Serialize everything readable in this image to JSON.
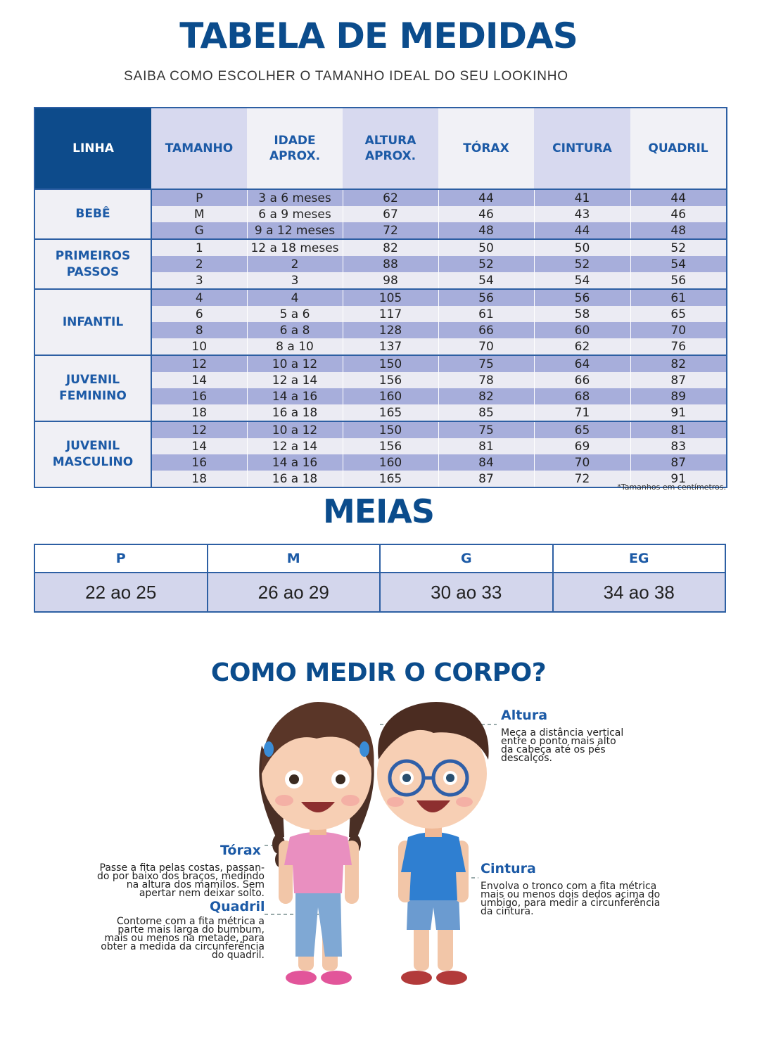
{
  "header": {
    "title": "TABELA DE MEDIDAS",
    "subtitle": "SAIBA COMO ESCOLHER O TAMANHO IDEAL DO SEU LOOKINHO"
  },
  "table": {
    "columns": [
      "LINHA",
      "TAMANHO",
      "IDADE\nAPROX.",
      "ALTURA\nAPROX.",
      "TÓRAX",
      "CINTURA",
      "QUADRIL"
    ],
    "groups": [
      {
        "name": "BEBÊ",
        "rows": [
          [
            "P",
            "3 a 6 meses",
            "62",
            "44",
            "41",
            "44"
          ],
          [
            "M",
            "6 a 9 meses",
            "67",
            "46",
            "43",
            "46"
          ],
          [
            "G",
            "9 a 12 meses",
            "72",
            "48",
            "44",
            "48"
          ]
        ]
      },
      {
        "name": "PRIMEIROS\nPASSOS",
        "rows": [
          [
            "1",
            "12 a 18 meses",
            "82",
            "50",
            "50",
            "52"
          ],
          [
            "2",
            "2",
            "88",
            "52",
            "52",
            "54"
          ],
          [
            "3",
            "3",
            "98",
            "54",
            "54",
            "56"
          ]
        ]
      },
      {
        "name": "INFANTIL",
        "rows": [
          [
            "4",
            "4",
            "105",
            "56",
            "56",
            "61"
          ],
          [
            "6",
            "5 a 6",
            "117",
            "61",
            "58",
            "65"
          ],
          [
            "8",
            "6 a 8",
            "128",
            "66",
            "60",
            "70"
          ],
          [
            "10",
            "8 a 10",
            "137",
            "70",
            "62",
            "76"
          ]
        ]
      },
      {
        "name": "JUVENIL\nFEMININO",
        "rows": [
          [
            "12",
            "10 a 12",
            "150",
            "75",
            "64",
            "82"
          ],
          [
            "14",
            "12 a 14",
            "156",
            "78",
            "66",
            "87"
          ],
          [
            "16",
            "14 a 16",
            "160",
            "82",
            "68",
            "89"
          ],
          [
            "18",
            "16 a 18",
            "165",
            "85",
            "71",
            "91"
          ]
        ]
      },
      {
        "name": "JUVENIL\nMASCULINO",
        "rows": [
          [
            "12",
            "10 a 12",
            "150",
            "75",
            "65",
            "81"
          ],
          [
            "14",
            "12 a 14",
            "156",
            "81",
            "69",
            "83"
          ],
          [
            "16",
            "14 a 16",
            "160",
            "84",
            "70",
            "87"
          ],
          [
            "18",
            "16 a 18",
            "165",
            "87",
            "72",
            "91"
          ]
        ]
      }
    ],
    "note": "*Tamanhos em centímetros."
  },
  "meias": {
    "title": "MEIAS",
    "headers": [
      "P",
      "M",
      "G",
      "EG"
    ],
    "values": [
      "22 ao 25",
      "26 ao 29",
      "30 ao 33",
      "34 ao 38"
    ]
  },
  "como_medir": {
    "title": "COMO MEDIR O CORPO?",
    "altura": {
      "label": "Altura",
      "lines": [
        "Meça a distância vertical",
        "entre o ponto mais alto",
        "da cabeça até os pés",
        "descalços."
      ]
    },
    "torax": {
      "label": "Tórax",
      "lines": [
        "Passe a fita pelas costas, passan-",
        "do por baixo dos braços, medindo",
        "na altura dos mamilos. Sem",
        "apertar nem deixar solto."
      ]
    },
    "quadril": {
      "label": "Quadril",
      "lines": [
        "Contorne com a fita métrica a",
        "parte mais larga do bumbum,",
        "mais ou menos na metade, para",
        "obter a medida da circunferência",
        "do quadril."
      ]
    },
    "cintura": {
      "label": "Cintura",
      "lines": [
        "Envolva o tronco com a fita métrica",
        "mais ou menos dois dedos acima do",
        "umbigo, para medir a  circunferência",
        "da cintura."
      ]
    }
  },
  "colors": {
    "primary": "#0b4c8c",
    "accent": "#1c5aa6",
    "row_dark": "#a7aedb",
    "row_light": "#ebebf3"
  }
}
